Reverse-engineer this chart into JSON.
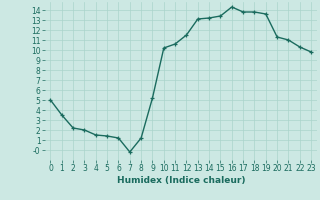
{
  "x": [
    0,
    1,
    2,
    3,
    4,
    5,
    6,
    7,
    8,
    9,
    10,
    11,
    12,
    13,
    14,
    15,
    16,
    17,
    18,
    19,
    20,
    21,
    22,
    23
  ],
  "y": [
    5,
    3.5,
    2.2,
    2.0,
    1.5,
    1.4,
    1.2,
    -0.2,
    1.2,
    5.2,
    10.2,
    10.6,
    11.5,
    13.1,
    13.2,
    13.4,
    14.3,
    13.8,
    13.8,
    13.6,
    11.3,
    11.0,
    10.3,
    9.8
  ],
  "line_color": "#1a6b5e",
  "bg_color": "#cce8e3",
  "grid_color": "#aad4cc",
  "xlabel": "Humidex (Indice chaleur)",
  "xlim": [
    -0.5,
    23.5
  ],
  "ylim": [
    -1.0,
    14.8
  ],
  "yticks": [
    0,
    1,
    2,
    3,
    4,
    5,
    6,
    7,
    8,
    9,
    10,
    11,
    12,
    13,
    14
  ],
  "ytick_labels": [
    "-0",
    "1",
    "2",
    "3",
    "4",
    "5",
    "6",
    "7",
    "8",
    "9",
    "10",
    "11",
    "12",
    "13",
    "14"
  ],
  "xticks": [
    0,
    1,
    2,
    3,
    4,
    5,
    6,
    7,
    8,
    9,
    10,
    11,
    12,
    13,
    14,
    15,
    16,
    17,
    18,
    19,
    20,
    21,
    22,
    23
  ],
  "xlabel_fontsize": 6.5,
  "tick_fontsize": 5.5,
  "marker_size": 3.5,
  "line_width": 1.0
}
